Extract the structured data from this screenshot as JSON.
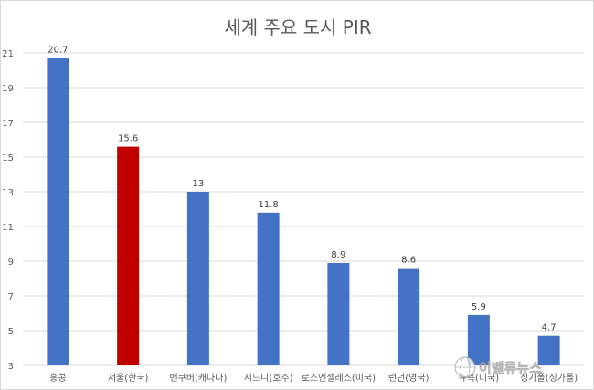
{
  "chart_data": {
    "type": "bar",
    "title": "세계 주요 도시 PIR",
    "categories": [
      "홍콩",
      "서울(한국)",
      "밴쿠버(캐나다)",
      "시드니(호주)",
      "로스엔젤레스(미국)",
      "런던(영국)",
      "뉴욕(미국)",
      "싱가폴(싱가폴)"
    ],
    "values": [
      20.7,
      15.6,
      13,
      11.8,
      8.9,
      8.6,
      5.9,
      4.7
    ],
    "data_labels": [
      "20.7",
      "15.6",
      "13",
      "11.8",
      "8.9",
      "8.6",
      "5.9",
      "4.7"
    ],
    "yticks": [
      3,
      5,
      7,
      9,
      11,
      13,
      15,
      17,
      19,
      21
    ],
    "ylim": [
      3,
      21
    ],
    "grid": true,
    "legend": "none",
    "colors": {
      "default_bar": "#4472C4",
      "highlight_bar": "#C00000",
      "grid": "#d9d9d9"
    },
    "highlight_index": 1
  },
  "watermark": {
    "text": "이벨류뉴스",
    "icon": "globe-logo-icon"
  }
}
